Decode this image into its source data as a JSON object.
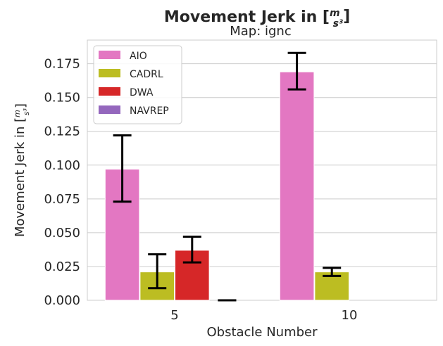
{
  "chart_data": {
    "type": "bar",
    "title": "Movement Jerk in [m/s³]",
    "subtitle": "Map: ignc",
    "xlabel": "Obstacle Number",
    "ylabel": "Movement Jerk in [m/s³]",
    "categories": [
      "5",
      "10"
    ],
    "ylim": [
      0,
      0.1925
    ],
    "yticks": [
      "0.000",
      "0.025",
      "0.050",
      "0.075",
      "0.100",
      "0.125",
      "0.150",
      "0.175"
    ],
    "grid": true,
    "legend_position": "top-left",
    "series": [
      {
        "name": "AIO",
        "color": "#e377c2",
        "values": [
          0.097,
          0.169
        ],
        "err_low": [
          0.073,
          0.156
        ],
        "err_high": [
          0.122,
          0.183
        ]
      },
      {
        "name": "CADRL",
        "color": "#bcbd22",
        "values": [
          0.021,
          0.021
        ],
        "err_low": [
          0.009,
          0.018
        ],
        "err_high": [
          0.034,
          0.024
        ]
      },
      {
        "name": "DWA",
        "color": "#d62728",
        "values": [
          0.037,
          null
        ],
        "err_low": [
          0.028,
          null
        ],
        "err_high": [
          0.047,
          null
        ]
      },
      {
        "name": "NAVREP",
        "color": "#9467bd",
        "values": [
          0.0,
          null
        ],
        "err_low": [
          0.0,
          null
        ],
        "err_high": [
          0.0,
          null
        ]
      }
    ]
  }
}
